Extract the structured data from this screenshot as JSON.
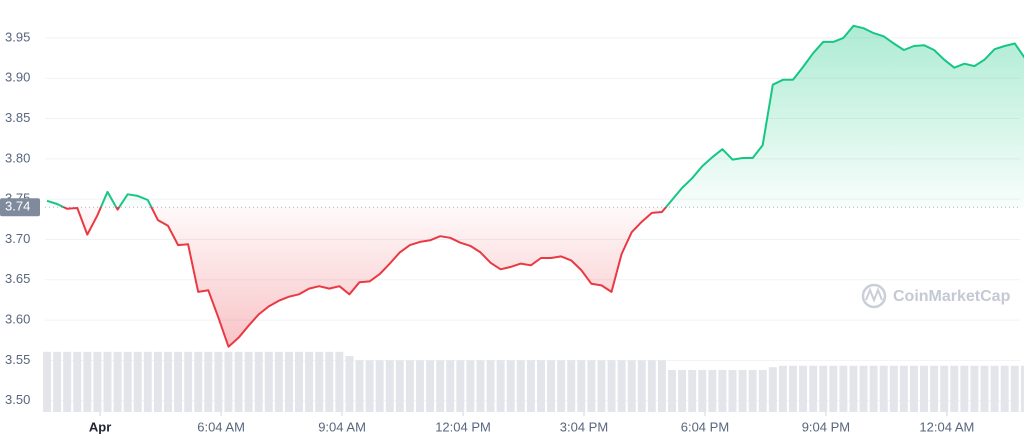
{
  "chart_data": {
    "type": "line",
    "x": [
      1.75,
      2,
      2.25,
      2.5,
      2.75,
      3,
      3.25,
      3.5,
      3.75,
      4,
      4.25,
      4.5,
      4.75,
      5,
      5.25,
      5.5,
      5.75,
      6,
      6.25,
      6.5,
      6.75,
      7,
      7.25,
      7.5,
      7.75,
      8,
      8.25,
      8.5,
      8.75,
      9,
      9.25,
      9.5,
      9.75,
      10,
      10.25,
      10.5,
      10.75,
      11,
      11.25,
      11.5,
      11.75,
      12,
      12.25,
      12.5,
      12.75,
      13,
      13.25,
      13.5,
      13.75,
      14,
      14.25,
      14.5,
      14.75,
      15,
      15.25,
      15.5,
      15.75,
      16,
      16.25,
      16.5,
      16.75,
      17,
      17.25,
      17.5,
      17.75,
      18,
      18.25,
      18.5,
      18.75,
      19,
      19.25,
      19.5,
      19.75,
      20,
      20.25,
      20.5,
      20.75,
      21,
      21.25,
      21.5,
      21.75,
      22,
      22.25,
      22.5,
      22.75,
      23,
      23.25,
      23.5,
      23.75,
      24,
      24.25,
      24.5,
      24.75,
      25,
      25.25,
      25.5,
      25.75,
      26
    ],
    "values": [
      3.748,
      3.744,
      3.738,
      3.739,
      3.706,
      3.73,
      3.759,
      3.737,
      3.756,
      3.754,
      3.749,
      3.724,
      3.717,
      3.693,
      3.694,
      3.635,
      3.637,
      3.603,
      3.567,
      3.578,
      3.593,
      3.607,
      3.617,
      3.624,
      3.629,
      3.632,
      3.639,
      3.642,
      3.639,
      3.642,
      3.632,
      3.647,
      3.648,
      3.657,
      3.67,
      3.684,
      3.693,
      3.697,
      3.699,
      3.704,
      3.702,
      3.696,
      3.692,
      3.684,
      3.671,
      3.663,
      3.666,
      3.67,
      3.668,
      3.677,
      3.677,
      3.679,
      3.674,
      3.662,
      3.645,
      3.643,
      3.635,
      3.682,
      3.709,
      3.722,
      3.733,
      3.734,
      3.749,
      3.764,
      3.776,
      3.791,
      3.802,
      3.812,
      3.799,
      3.801,
      3.801,
      3.817,
      3.892,
      3.898,
      3.898,
      3.914,
      3.931,
      3.945,
      3.945,
      3.95,
      3.965,
      3.962,
      3.956,
      3.952,
      3.943,
      3.935,
      3.94,
      3.941,
      3.935,
      3.923,
      3.913,
      3.918,
      3.915,
      3.923,
      3.936,
      3.94,
      3.943,
      3.925
    ],
    "volume": [
      86,
      86,
      86,
      86,
      86,
      86,
      86,
      86,
      86,
      86,
      86,
      86,
      86,
      86,
      86,
      86,
      86,
      86,
      86,
      86,
      86,
      86,
      86,
      86,
      86,
      86,
      86,
      86,
      86,
      86,
      80,
      74,
      74,
      74,
      74,
      74,
      74,
      74,
      74,
      74,
      74,
      74,
      74,
      74,
      74,
      74,
      74,
      74,
      74,
      74,
      74,
      74,
      74,
      74,
      74,
      74,
      74,
      74,
      74,
      74,
      74,
      74,
      60,
      60,
      60,
      60,
      60,
      60,
      60,
      60,
      60,
      60,
      64,
      66,
      66,
      66,
      66,
      66,
      66,
      66,
      66,
      66,
      66,
      66,
      66,
      66,
      66,
      66,
      66,
      66,
      66,
      66,
      66,
      66,
      66,
      66,
      66,
      66
    ],
    "volume_lim": [
      0,
      100
    ],
    "baseline": 3.74,
    "up_color": "#16c784",
    "down_color": "#ea3943",
    "volume_color": "#e3e5ea",
    "xlim": [
      1.7,
      25.88
    ],
    "xticks": [
      {
        "value": 3.067,
        "label": "Apr"
      },
      {
        "value": 6.067,
        "label": "6:04 AM"
      },
      {
        "value": 9.067,
        "label": "9:04 AM"
      },
      {
        "value": 12.067,
        "label": "12:04 PM"
      },
      {
        "value": 15.067,
        "label": "3:04 PM"
      },
      {
        "value": 18.067,
        "label": "6:04 PM"
      },
      {
        "value": 21.067,
        "label": "9:04 PM"
      },
      {
        "value": 24.067,
        "label": "12:04 AM"
      }
    ],
    "ylim": [
      3.486,
      3.997
    ],
    "yticks": [
      {
        "value": 3.5,
        "label": "3.50"
      },
      3.55,
      {
        "value": 3.6,
        "label": "3.60"
      },
      3.65,
      {
        "value": 3.7,
        "label": "3.70"
      },
      3.75,
      {
        "value": 3.8,
        "label": "3.80"
      },
      3.85,
      {
        "value": 3.9,
        "label": "3.90"
      },
      3.95
    ],
    "grid": true,
    "watermark": "CoinMarketCap"
  }
}
